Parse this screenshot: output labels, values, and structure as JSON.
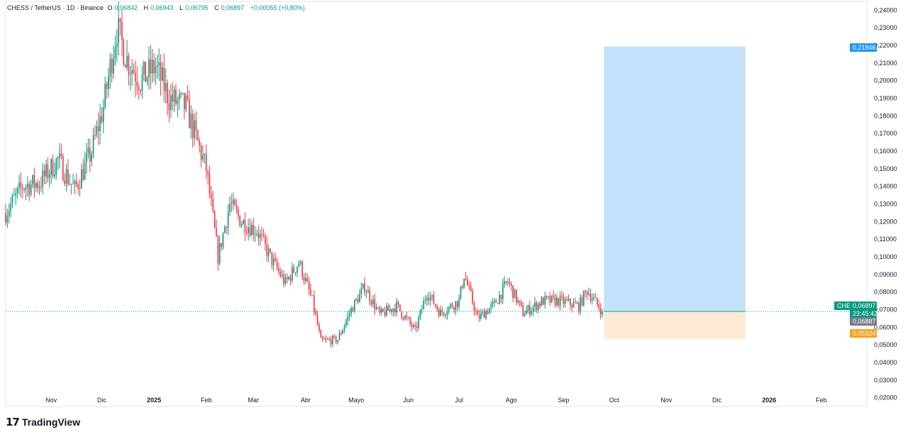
{
  "header": {
    "symbol": "CHESS / TetherUS · 1D · Binance",
    "o_label": "O",
    "o": "0,06842",
    "h_label": "H",
    "h": "0,06943",
    "l_label": "L",
    "l": "0,06795",
    "c_label": "C",
    "c": "0,06897",
    "change": "+0,00055 (+0,80%)"
  },
  "brand": {
    "logo": "17",
    "name": "TradingView"
  },
  "price_labels": {
    "target": "0,21946",
    "ticker": "CHESSUSDT",
    "last": "0,06897",
    "countdown": "23:45:42",
    "prev": "0,06887",
    "stop": "0,05324"
  },
  "colors": {
    "up": "#089981",
    "down": "#f23645",
    "profit_zone": "#c4e3fb",
    "loss_zone": "#fdebd5",
    "target_badge": "#2196f3",
    "stop_badge": "#f7a21b",
    "prev_badge": "#787b86"
  },
  "chart_data": {
    "type": "candlestick",
    "yaxis": {
      "min": 0.015,
      "max": 0.245,
      "ticks": [
        "0,24000",
        "0,23000",
        "0,22000",
        "0,21000",
        "0,20000",
        "0,19000",
        "0,18000",
        "0,17000",
        "0,16000",
        "0,15000",
        "0,14000",
        "0,13000",
        "0,12000",
        "0,11000",
        "0,10000",
        "0,09000",
        "0,08000",
        "0,07000",
        "0,06000",
        "0,05000",
        "0,04000",
        "0,03000",
        "0,02000"
      ],
      "tick_values": [
        0.24,
        0.23,
        0.22,
        0.21,
        0.2,
        0.19,
        0.18,
        0.17,
        0.16,
        0.15,
        0.14,
        0.13,
        0.12,
        0.11,
        0.1,
        0.09,
        0.08,
        0.07,
        0.06,
        0.05,
        0.04,
        0.03,
        0.02
      ]
    },
    "xaxis": {
      "labels": [
        "Nov",
        "Dic",
        "2025",
        "Feb",
        "Mar",
        "Abr",
        "Mayo",
        "Jun",
        "Jul",
        "Ago",
        "Sep",
        "Oct",
        "Nov",
        "Dic",
        "2026",
        "Feb"
      ],
      "dates": [
        "2024-11-01",
        "2024-12-01",
        "2025-01-01",
        "2025-02-01",
        "2025-03-01",
        "2025-04-01",
        "2025-05-01",
        "2025-06-01",
        "2025-07-01",
        "2025-08-01",
        "2025-09-01",
        "2025-10-01",
        "2025-11-01",
        "2025-12-01",
        "2026-01-01",
        "2026-02-01"
      ],
      "start": "2024-10-05",
      "end": "2026-02-28"
    },
    "price_anchors": [
      [
        "2024-10-05",
        0.125
      ],
      [
        "2024-10-15",
        0.14
      ],
      [
        "2024-10-25",
        0.142
      ],
      [
        "2024-11-05",
        0.155
      ],
      [
        "2024-11-15",
        0.138
      ],
      [
        "2024-11-25",
        0.16
      ],
      [
        "2024-12-02",
        0.185
      ],
      [
        "2024-12-10",
        0.23
      ],
      [
        "2024-12-16",
        0.212
      ],
      [
        "2024-12-24",
        0.2
      ],
      [
        "2025-01-02",
        0.208
      ],
      [
        "2025-01-10",
        0.19
      ],
      [
        "2025-01-20",
        0.185
      ],
      [
        "2025-02-01",
        0.15
      ],
      [
        "2025-02-08",
        0.1
      ],
      [
        "2025-02-15",
        0.13
      ],
      [
        "2025-02-22",
        0.12
      ],
      [
        "2025-03-03",
        0.115
      ],
      [
        "2025-03-12",
        0.098
      ],
      [
        "2025-03-20",
        0.085
      ],
      [
        "2025-03-28",
        0.097
      ],
      [
        "2025-04-05",
        0.075
      ],
      [
        "2025-04-10",
        0.052
      ],
      [
        "2025-04-20",
        0.053
      ],
      [
        "2025-04-28",
        0.07
      ],
      [
        "2025-05-06",
        0.083
      ],
      [
        "2025-05-15",
        0.067
      ],
      [
        "2025-05-25",
        0.072
      ],
      [
        "2025-06-05",
        0.058
      ],
      [
        "2025-06-12",
        0.08
      ],
      [
        "2025-06-20",
        0.068
      ],
      [
        "2025-07-01",
        0.075
      ],
      [
        "2025-07-04",
        0.09
      ],
      [
        "2025-07-12",
        0.065
      ],
      [
        "2025-07-22",
        0.073
      ],
      [
        "2025-07-30",
        0.086
      ],
      [
        "2025-08-08",
        0.068
      ],
      [
        "2025-08-20",
        0.075
      ],
      [
        "2025-08-30",
        0.075
      ],
      [
        "2025-09-10",
        0.072
      ],
      [
        "2025-09-15",
        0.081
      ],
      [
        "2025-09-24",
        0.06897
      ]
    ],
    "position": {
      "type": "long",
      "start": "2025-09-25",
      "end": "2025-12-18",
      "entry": 0.06897,
      "target": 0.21946,
      "stop": 0.05324
    },
    "last_price": 0.06897
  }
}
